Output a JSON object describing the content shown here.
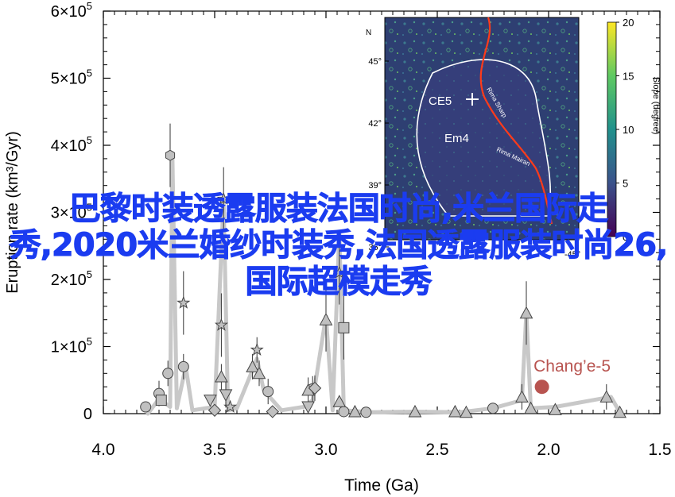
{
  "chart_data": {
    "type": "scatter",
    "xlabel": "Time (Ga)",
    "ylabel": "Eruption rate (km³/Gyr)",
    "xlim": [
      4.0,
      1.5
    ],
    "ylim": [
      0,
      600000
    ],
    "x_ticks": [
      "4.0",
      "3.5",
      "3.0",
      "2.5",
      "2.0",
      "1.5"
    ],
    "y_ticks": [
      {
        "value": 0,
        "base": "0",
        "exp": ""
      },
      {
        "value": 100000,
        "base": "1×10",
        "exp": "5"
      },
      {
        "value": 200000,
        "base": "2×10",
        "exp": "5"
      },
      {
        "value": 300000,
        "base": "3×10",
        "exp": "5"
      },
      {
        "value": 400000,
        "base": "4×10",
        "exp": "5"
      },
      {
        "value": 500000,
        "base": "5×10",
        "exp": "5"
      },
      {
        "value": 600000,
        "base": "6×10",
        "exp": "5"
      }
    ],
    "grid": false,
    "trend_line": {
      "color": "#c8c8c8",
      "points": [
        [
          3.8,
          0
        ],
        [
          3.75,
          22000
        ],
        [
          3.7,
          10000
        ],
        [
          3.69,
          385000
        ],
        [
          3.67,
          8000
        ],
        [
          3.63,
          70000
        ],
        [
          3.6,
          5000
        ],
        [
          3.5,
          10000
        ],
        [
          3.46,
          320000
        ],
        [
          3.44,
          5000
        ],
        [
          3.4,
          8000
        ],
        [
          3.33,
          65000
        ],
        [
          3.31,
          82000
        ],
        [
          3.28,
          35000
        ],
        [
          3.2,
          5000
        ],
        [
          3.1,
          10000
        ],
        [
          3.06,
          20000
        ],
        [
          3.0,
          145000
        ],
        [
          2.97,
          5000
        ],
        [
          2.94,
          270000
        ],
        [
          2.92,
          5000
        ],
        [
          2.8,
          2000
        ],
        [
          2.6,
          3000
        ],
        [
          2.4,
          2000
        ],
        [
          2.25,
          8000
        ],
        [
          2.12,
          20000
        ],
        [
          2.1,
          150000
        ],
        [
          2.08,
          8000
        ],
        [
          1.97,
          10000
        ],
        [
          1.72,
          25000
        ],
        [
          1.68,
          2000
        ]
      ]
    },
    "series": [
      {
        "marker": "circle",
        "color": "#c0c0c0",
        "points": [
          [
            3.81,
            10000
          ],
          [
            3.75,
            30000
          ],
          [
            3.71,
            60000
          ],
          [
            3.64,
            70000
          ],
          [
            3.26,
            33000
          ],
          [
            3.06,
            37000
          ],
          [
            2.92,
            3000
          ],
          [
            2.82,
            2000
          ],
          [
            2.25,
            8000
          ]
        ]
      },
      {
        "marker": "hexagon",
        "color": "#c0c0c0",
        "points": [
          [
            3.7,
            385000
          ]
        ]
      },
      {
        "marker": "star",
        "color": "#c0c0c0",
        "points": [
          [
            3.46,
            320000
          ],
          [
            3.64,
            165000
          ],
          [
            3.47,
            132000
          ],
          [
            3.31,
            95000
          ],
          [
            3.43,
            10000
          ],
          [
            2.94,
            210000
          ]
        ]
      },
      {
        "marker": "triangle-up",
        "color": "#c0c0c0",
        "points": [
          [
            3.47,
            55000
          ],
          [
            3.33,
            70000
          ],
          [
            3.3,
            60000
          ],
          [
            3.08,
            35000
          ],
          [
            3.0,
            140000
          ],
          [
            2.94,
            18000
          ],
          [
            2.87,
            3000
          ],
          [
            2.6,
            3000
          ],
          [
            2.42,
            3000
          ],
          [
            2.37,
            2000
          ],
          [
            2.12,
            25000
          ],
          [
            2.1,
            150000
          ],
          [
            2.08,
            8000
          ],
          [
            1.97,
            6000
          ],
          [
            1.74,
            25000
          ],
          [
            1.68,
            2000
          ]
        ]
      },
      {
        "marker": "triangle-down",
        "color": "#c0c0c0",
        "points": [
          [
            3.52,
            20000
          ],
          [
            3.45,
            28000
          ],
          [
            3.08,
            10000
          ]
        ]
      },
      {
        "marker": "diamond",
        "color": "#c0c0c0",
        "points": [
          [
            3.5,
            5000
          ],
          [
            3.24,
            3000
          ],
          [
            3.05,
            38000
          ]
        ]
      },
      {
        "marker": "square",
        "color": "#c0c0c0",
        "points": [
          [
            3.74,
            20000
          ],
          [
            2.92,
            128000
          ]
        ]
      }
    ],
    "highlight": {
      "label": "Chang’e-5",
      "x": 2.03,
      "y": 40000,
      "color": "#b85450"
    },
    "inset": {
      "lat_ticks": [
        "45°",
        "42°",
        "39°",
        "36°"
      ],
      "lon_ticks": [
        "-45°"
      ],
      "north_label": "N",
      "site_label": "CE5",
      "unit_label": "Em4",
      "features": [
        "Rima Sharp",
        "Rima Mairan"
      ],
      "colorbar_label": "Slope (degree)",
      "colorbar_ticks": [
        "20",
        "15",
        "10",
        "5",
        "0"
      ],
      "colorbar_range": [
        0,
        20
      ]
    }
  },
  "overlay_text": "巴黎时装透露服装法国时尚,米兰国际走秀,2020米兰婚纱时装秀,法国透露服装时尚26,国际超模走秀"
}
